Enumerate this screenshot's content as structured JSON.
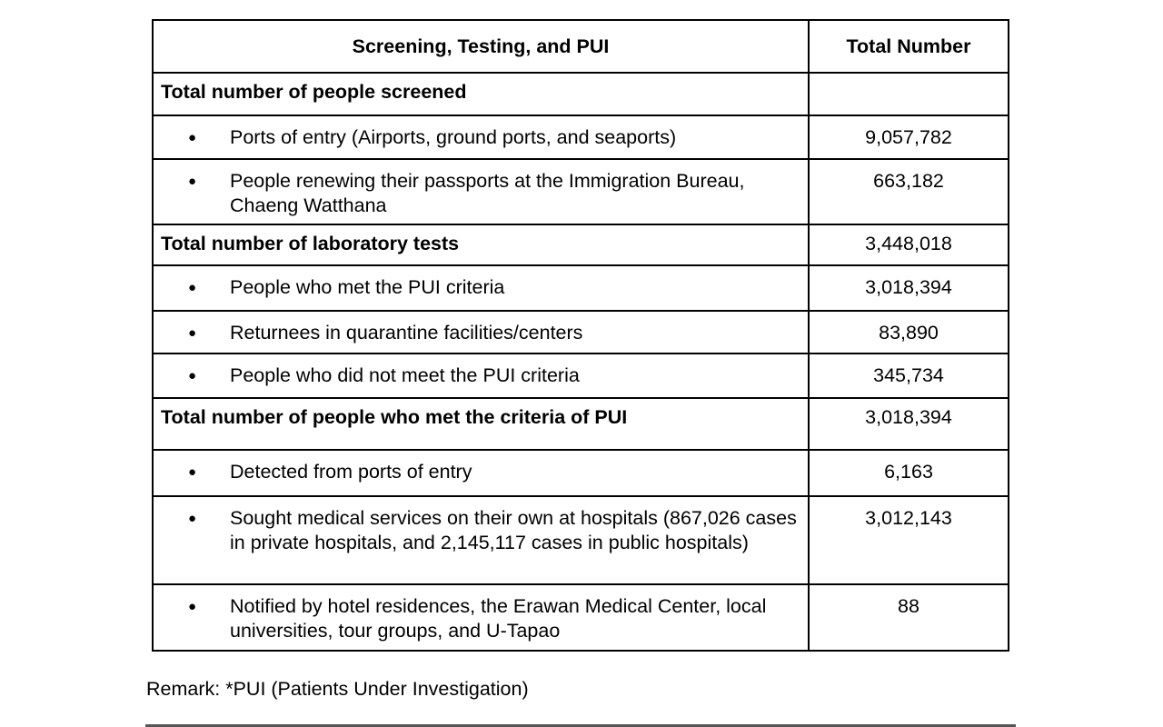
{
  "table": {
    "headers": [
      "Screening, Testing, and PUI",
      "Total Number"
    ],
    "rows": [
      {
        "label": "Total number of people screened",
        "value": "",
        "type": "section",
        "h": 47
      },
      {
        "label": "Ports of entry (Airports, ground ports, and seaports)",
        "value": "9,057,782",
        "type": "item",
        "h": 48
      },
      {
        "label": "People renewing their passports at the Immigration Bureau, Chaeng Watthana",
        "value": "663,182",
        "type": "item",
        "h": 72
      },
      {
        "label": "Total number of laboratory tests",
        "value": "3,448,018",
        "type": "section",
        "h": 45
      },
      {
        "label": "People who met the PUI criteria",
        "value": "3,018,394",
        "type": "item",
        "h": 50
      },
      {
        "label": "Returnees in quarantine facilities/centers",
        "value": "83,890",
        "type": "item",
        "h": 47
      },
      {
        "label": "People who did not meet the PUI criteria",
        "value": "345,734",
        "type": "item",
        "h": 49
      },
      {
        "label": "Total number of people who met the criteria of PUI",
        "value": "3,018,394",
        "type": "section",
        "h": 57
      },
      {
        "label": "Detected from ports of entry",
        "value": "6,163",
        "type": "item",
        "h": 51
      },
      {
        "label": "Sought medical services on their own at hospitals (867,026 cases in private hospitals, and 2,145,117 cases in public hospitals)",
        "value": "3,012,143",
        "type": "item",
        "h": 97
      },
      {
        "label": "Notified by hotel residences, the Erawan Medical Center, local universities, tour groups, and U-Tapao",
        "value": "88",
        "type": "item",
        "h": 73
      }
    ]
  },
  "remark": "Remark: *PUI (Patients Under Investigation)"
}
